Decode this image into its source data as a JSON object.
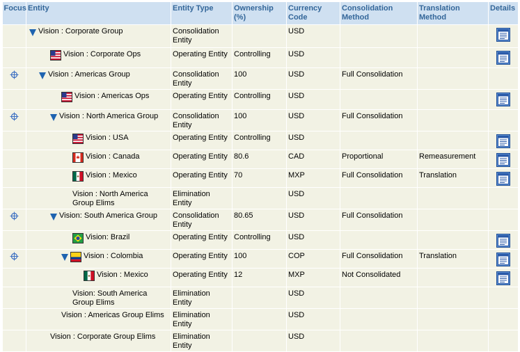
{
  "headers": {
    "focus": "Focus",
    "entity": "Entity",
    "type": "Entity Type",
    "ownership": "Ownership (%)",
    "currency": "Currency Code",
    "consolidation": "Consolidation Method",
    "translation": "Translation Method",
    "details": "Details"
  },
  "rows": [
    {
      "level": 0,
      "expand": true,
      "flag": "",
      "name": "Vision : Corporate Group",
      "type": "Consolidation Entity",
      "ownership": "",
      "currency": "USD",
      "consolidation": "",
      "translation": "",
      "focus": false,
      "details": true
    },
    {
      "level": 1,
      "expand": false,
      "flag": "us",
      "name": "Vision : Corporate Ops",
      "type": "Operating Entity",
      "ownership": "Controlling",
      "currency": "USD",
      "consolidation": "",
      "translation": "",
      "focus": false,
      "details": true
    },
    {
      "level": 1,
      "expand": true,
      "flag": "",
      "name": "Vision : Americas Group",
      "type": "Consolidation Entity",
      "ownership": "100",
      "currency": "USD",
      "consolidation": "Full Consolidation",
      "translation": "",
      "focus": true,
      "details": false
    },
    {
      "level": 2,
      "expand": false,
      "flag": "us",
      "name": "Vision : Americas Ops",
      "type": "Operating Entity",
      "ownership": "Controlling",
      "currency": "USD",
      "consolidation": "",
      "translation": "",
      "focus": false,
      "details": true
    },
    {
      "level": 2,
      "expand": true,
      "flag": "",
      "name": "Vision : North America Group",
      "type": "Consolidation Entity",
      "ownership": "100",
      "currency": "USD",
      "consolidation": "Full Consolidation",
      "translation": "",
      "focus": true,
      "details": false
    },
    {
      "level": 3,
      "expand": false,
      "flag": "us",
      "name": "Vision : USA",
      "type": "Operating Entity",
      "ownership": "Controlling",
      "currency": "USD",
      "consolidation": "",
      "translation": "",
      "focus": false,
      "details": true
    },
    {
      "level": 3,
      "expand": false,
      "flag": "ca",
      "name": "Vision : Canada",
      "type": "Operating Entity",
      "ownership": "80.6",
      "currency": "CAD",
      "consolidation": "Proportional",
      "translation": "Remeasurement",
      "focus": false,
      "details": true
    },
    {
      "level": 3,
      "expand": false,
      "flag": "mx",
      "name": "Vision : Mexico",
      "type": "Operating Entity",
      "ownership": "70",
      "currency": "MXP",
      "consolidation": "Full Consolidation",
      "translation": "Translation",
      "focus": false,
      "details": true
    },
    {
      "level": 3,
      "expand": false,
      "flag": "",
      "name": "Vision : North America Group Elims",
      "type": "Elimination Entity",
      "ownership": "",
      "currency": "USD",
      "consolidation": "",
      "translation": "",
      "focus": false,
      "details": false
    },
    {
      "level": 2,
      "expand": true,
      "flag": "",
      "name": "Vision: South America Group",
      "type": "Consolidation Entity",
      "ownership": "80.65",
      "currency": "USD",
      "consolidation": "Full Consolidation",
      "translation": "",
      "focus": true,
      "details": false
    },
    {
      "level": 3,
      "expand": false,
      "flag": "br",
      "name": "Vision: Brazil",
      "type": "Operating Entity",
      "ownership": "Controlling",
      "currency": "USD",
      "consolidation": "",
      "translation": "",
      "focus": false,
      "details": true
    },
    {
      "level": 3,
      "expand": true,
      "flag": "co",
      "name": "Vision : Colombia",
      "type": "Operating Entity",
      "ownership": "100",
      "currency": "COP",
      "consolidation": "Full Consolidation",
      "translation": "Translation",
      "focus": true,
      "details": true
    },
    {
      "level": 4,
      "expand": false,
      "flag": "mx",
      "name": "Vision : Mexico",
      "type": "Operating Entity",
      "ownership": "12",
      "currency": "MXP",
      "consolidation": "Not Consolidated",
      "translation": "",
      "focus": false,
      "details": true
    },
    {
      "level": 3,
      "expand": false,
      "flag": "",
      "name": "Vision: South America Group Elims",
      "type": "Elimination Entity",
      "ownership": "",
      "currency": "USD",
      "consolidation": "",
      "translation": "",
      "focus": false,
      "details": false
    },
    {
      "level": 2,
      "expand": false,
      "flag": "",
      "name": "Vision : Americas Group Elims",
      "type": "Elimination Entity",
      "ownership": "",
      "currency": "USD",
      "consolidation": "",
      "translation": "",
      "focus": false,
      "details": false
    },
    {
      "level": 1,
      "expand": false,
      "flag": "",
      "name": "Vision : Corporate Group Elims",
      "type": "Elimination Entity",
      "ownership": "",
      "currency": "USD",
      "consolidation": "",
      "translation": "",
      "focus": false,
      "details": false
    }
  ],
  "colors": {
    "header_bg": "#cfe0f1",
    "header_text": "#336699",
    "cell_bg": "#f2f2e4",
    "expand_icon": "#1e63b0"
  }
}
